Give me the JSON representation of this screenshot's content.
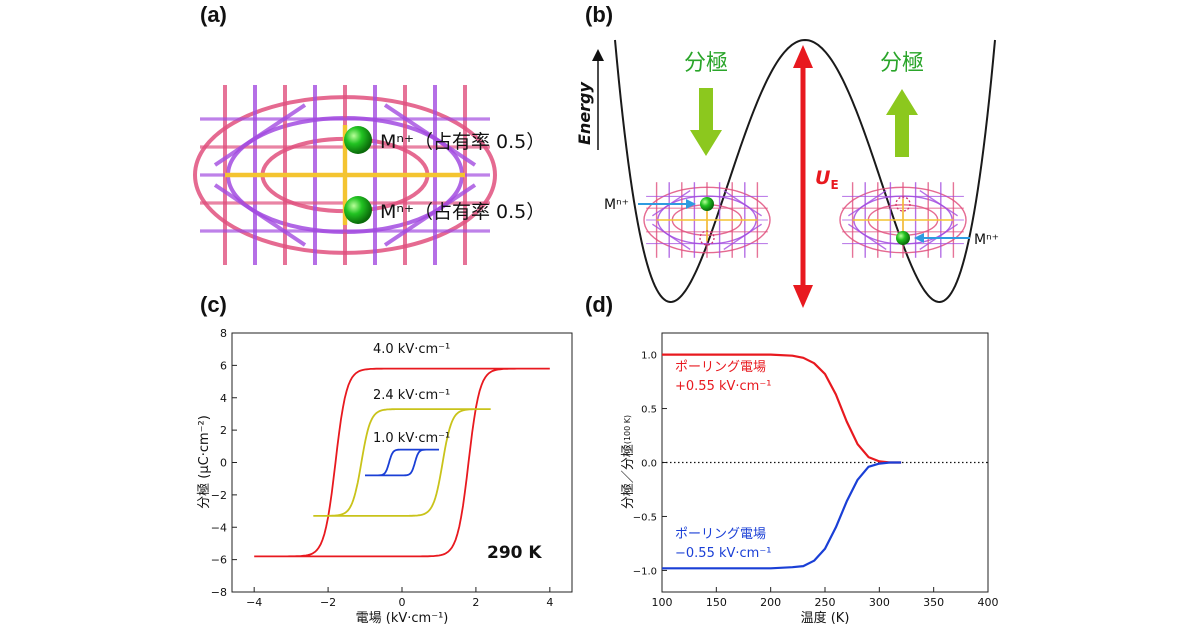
{
  "panels": {
    "a": {
      "label": "(a)",
      "site_labels": [
        "Mⁿ⁺（占有率 0.5）",
        "Mⁿ⁺（占有率 0.5）"
      ]
    },
    "b": {
      "label": "(b)",
      "energy_label": "Energy",
      "polarization_left": "分極",
      "polarization_right": "分極",
      "barrier_label": "U",
      "barrier_sub": "E",
      "ion_label_left": "Mⁿ⁺",
      "ion_label_right": "Mⁿ⁺"
    },
    "c": {
      "label": "(c)"
    },
    "d": {
      "label": "(d)"
    }
  },
  "colors": {
    "red": "#e8191f",
    "yellow": "#c9c31a",
    "blue": "#1a3fd6",
    "green_arrow": "#8cc81e",
    "green_text": "#2aa52a",
    "frame_pink": "#e0507e",
    "frame_purple": "#a24be0",
    "ion_blue": "#2e9be0"
  },
  "chart_data": [
    {
      "type": "line",
      "panel": "c",
      "xlabel": "電場 (kV·cm⁻¹)",
      "ylabel": "分極 (μC·cm⁻²)",
      "xlim": [
        -4.6,
        4.6
      ],
      "ylim": [
        -8,
        8
      ],
      "xticks": [
        -4,
        -2,
        0,
        2,
        4
      ],
      "yticks": [
        -8,
        -6,
        -4,
        -2,
        0,
        2,
        4,
        6,
        8
      ],
      "annotation": "290 K",
      "series": [
        {
          "name": "4.0 kV·cm⁻¹",
          "Emax": 4.0,
          "Ps": 5.8,
          "Ec": 1.8,
          "wid": 0.3,
          "color": "#e8191f"
        },
        {
          "name": "2.4 kV·cm⁻¹",
          "Emax": 2.4,
          "Ps": 3.3,
          "Ec": 1.1,
          "wid": 0.25,
          "color": "#c9c31a"
        },
        {
          "name": "1.0 kV·cm⁻¹",
          "Emax": 1.0,
          "Ps": 0.8,
          "Ec": 0.35,
          "wid": 0.1,
          "color": "#1a3fd6"
        }
      ]
    },
    {
      "type": "line",
      "panel": "d",
      "xlabel": "温度 (K)",
      "ylabel": "分極／分極",
      "ylabel_sub": "(100 K)",
      "xlim": [
        100,
        400
      ],
      "ylim": [
        -1.2,
        1.2
      ],
      "xticks": [
        100,
        150,
        200,
        250,
        300,
        350,
        400
      ],
      "yticks": [
        -1.0,
        -0.5,
        0.0,
        0.5,
        1.0
      ],
      "zero_line": "dotted",
      "series": [
        {
          "name": "ポーリング電場",
          "field": "+0.55 kV·cm⁻¹",
          "color": "#e8191f",
          "x": [
            100,
            150,
            200,
            220,
            230,
            240,
            250,
            260,
            270,
            280,
            290,
            300,
            310,
            320
          ],
          "values": [
            1.0,
            1.0,
            1.0,
            0.99,
            0.97,
            0.92,
            0.82,
            0.63,
            0.38,
            0.17,
            0.05,
            0.01,
            0.0,
            0.0
          ]
        },
        {
          "name": "ポーリング電場",
          "field": "−0.55 kV·cm⁻¹",
          "color": "#1a3fd6",
          "x": [
            100,
            150,
            200,
            220,
            230,
            240,
            250,
            260,
            270,
            280,
            290,
            300,
            310,
            320
          ],
          "values": [
            -0.98,
            -0.98,
            -0.98,
            -0.97,
            -0.96,
            -0.91,
            -0.8,
            -0.6,
            -0.36,
            -0.16,
            -0.04,
            -0.01,
            0.0,
            0.0
          ]
        }
      ]
    }
  ]
}
